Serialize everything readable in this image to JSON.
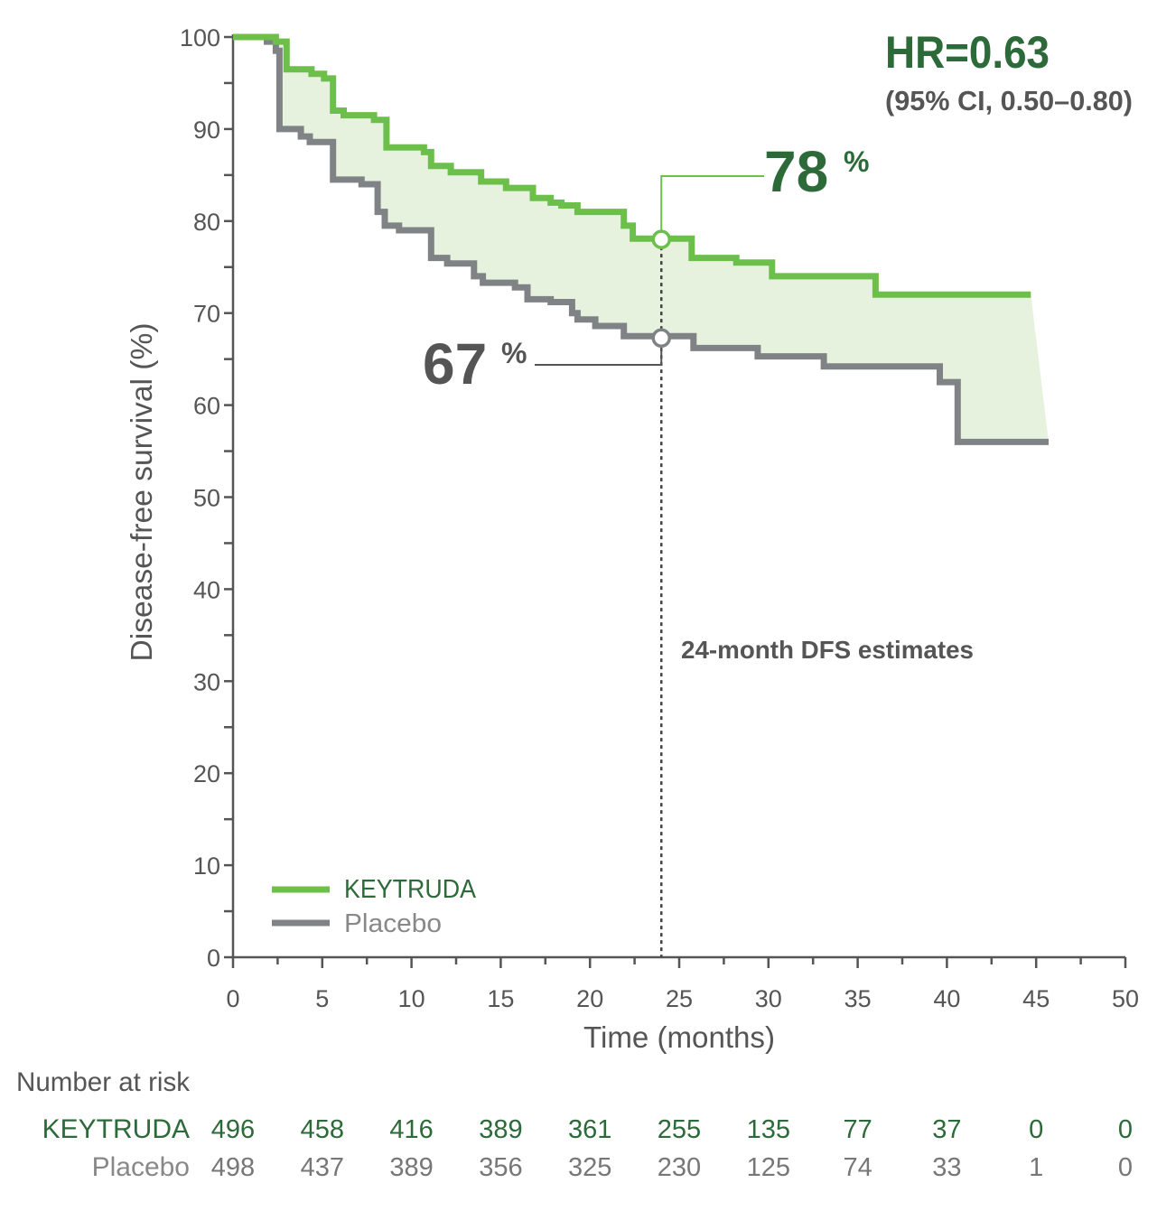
{
  "chart_data": {
    "type": "line",
    "xlabel": "Time (months)",
    "ylabel": "Disease-free survival (%)",
    "xlim": [
      0,
      50
    ],
    "ylim": [
      0,
      100
    ],
    "x_ticks": [
      0,
      5,
      10,
      15,
      20,
      25,
      30,
      35,
      40,
      45,
      50
    ],
    "y_ticks": [
      0,
      10,
      20,
      30,
      40,
      50,
      60,
      70,
      80,
      90,
      100
    ],
    "grid": false,
    "legend_placement": "bottom-left",
    "colors": {
      "keytruda": "#6cbf4a",
      "placebo": "#808385",
      "hr_text": "#2d6a39",
      "fill": "#e7f2de"
    },
    "series": [
      {
        "name": "KEYTRUDA",
        "step": true,
        "points": [
          [
            0,
            100
          ],
          [
            2.4,
            99.5
          ],
          [
            3.0,
            96.5
          ],
          [
            4.4,
            96
          ],
          [
            5.1,
            95.5
          ],
          [
            5.6,
            92
          ],
          [
            6.2,
            91.5
          ],
          [
            7.9,
            91
          ],
          [
            8.6,
            88
          ],
          [
            10.7,
            87.5
          ],
          [
            11.1,
            86
          ],
          [
            12.2,
            85.3
          ],
          [
            13.9,
            84.3
          ],
          [
            15.3,
            83.6
          ],
          [
            16.8,
            82.5
          ],
          [
            17.8,
            82
          ],
          [
            18.4,
            81.7
          ],
          [
            19.3,
            81
          ],
          [
            21.9,
            79.5
          ],
          [
            22.4,
            78.1
          ],
          [
            25.7,
            76
          ],
          [
            28.2,
            75.5
          ],
          [
            30.2,
            74
          ],
          [
            36,
            72
          ],
          [
            44.7,
            72
          ]
        ]
      },
      {
        "name": "Placebo",
        "step": true,
        "points": [
          [
            0,
            100
          ],
          [
            1.9,
            99.5
          ],
          [
            2.4,
            98.5
          ],
          [
            2.6,
            90
          ],
          [
            3.8,
            89.2
          ],
          [
            4.3,
            88.6
          ],
          [
            5.6,
            84.5
          ],
          [
            7.2,
            84
          ],
          [
            8.1,
            81
          ],
          [
            8.5,
            79.5
          ],
          [
            9.3,
            79
          ],
          [
            11.1,
            76
          ],
          [
            12,
            75.4
          ],
          [
            13.5,
            74
          ],
          [
            14,
            73.3
          ],
          [
            15.8,
            72.8
          ],
          [
            16.5,
            71.5
          ],
          [
            17.8,
            71.2
          ],
          [
            19,
            70
          ],
          [
            19.3,
            69.3
          ],
          [
            20.3,
            68.6
          ],
          [
            21.9,
            67.5
          ],
          [
            25.8,
            66.2
          ],
          [
            29.4,
            65.3
          ],
          [
            33.1,
            64.2
          ],
          [
            39.6,
            62.5
          ],
          [
            40.6,
            56
          ],
          [
            45.7,
            56
          ]
        ]
      }
    ],
    "annotations": {
      "hr": "HR=0.63",
      "ci": "(95% CI, 0.50–0.80)",
      "keytruda_estimate": {
        "value": "78",
        "unit": "%",
        "time": 24,
        "survival": 78
      },
      "placebo_estimate": {
        "value": "67",
        "unit": "%",
        "time": 24,
        "survival": 67.3
      },
      "estimate_label": "24-month DFS estimates"
    },
    "risk_table": {
      "title": "Number at risk",
      "rows": [
        {
          "label": "KEYTRUDA",
          "values": [
            "496",
            "458",
            "416",
            "389",
            "361",
            "255",
            "135",
            "77",
            "37",
            "0",
            "0"
          ]
        },
        {
          "label": "Placebo",
          "values": [
            "498",
            "437",
            "389",
            "356",
            "325",
            "230",
            "125",
            "74",
            "33",
            "1",
            "0"
          ]
        }
      ]
    }
  }
}
